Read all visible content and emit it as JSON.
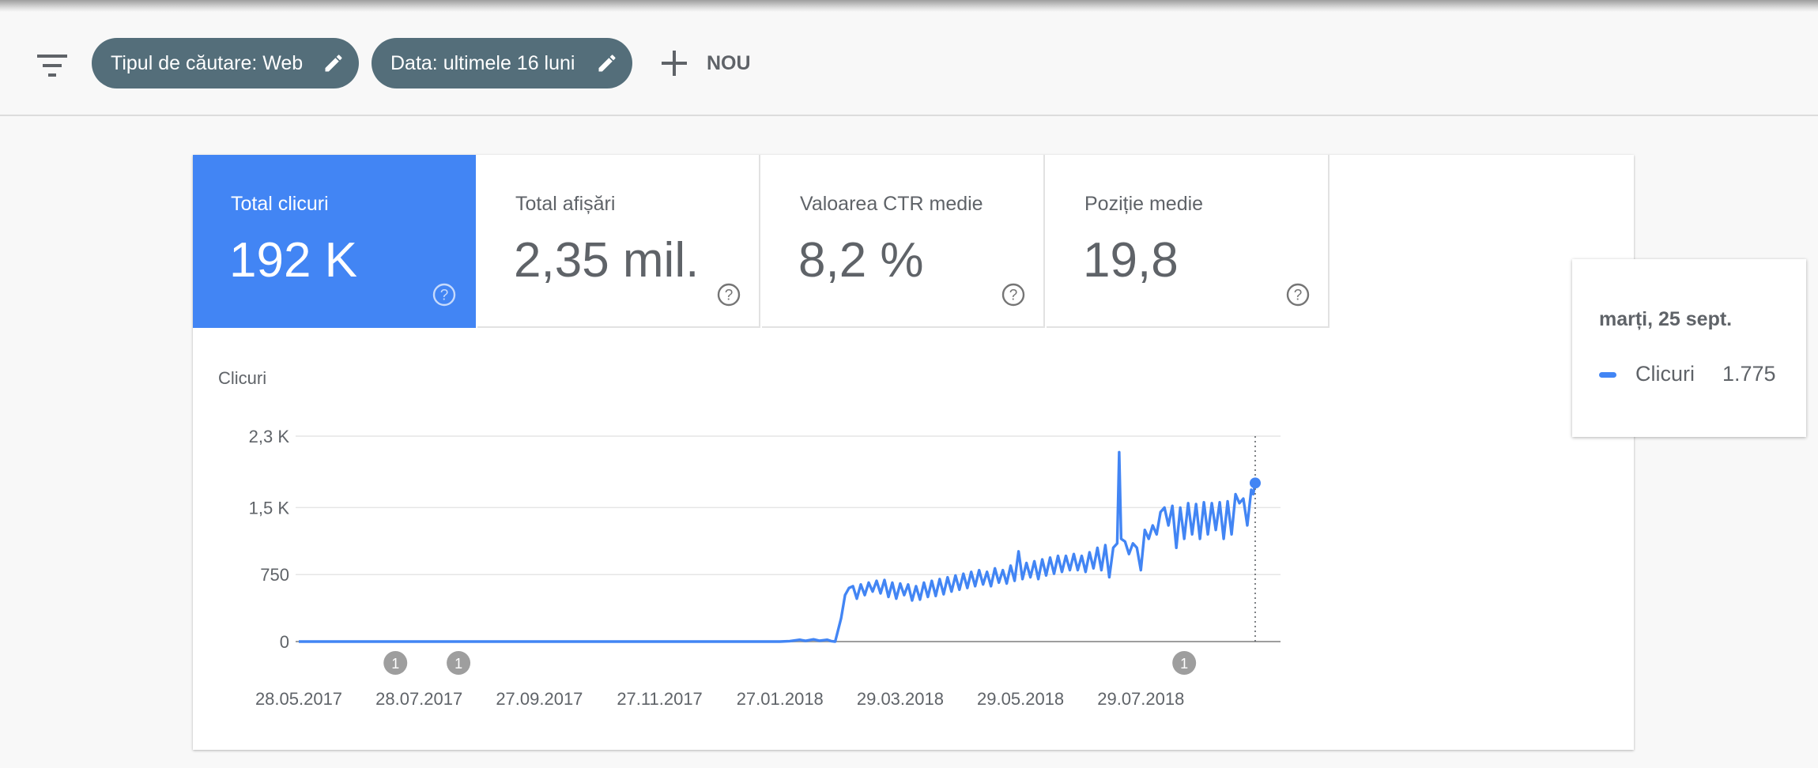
{
  "toolbar": {
    "filter_icon": "filter-list-icon",
    "chips": [
      {
        "label": "Tipul de căutare: Web",
        "icon": "pencil-icon"
      },
      {
        "label": "Data: ultimele 16 luni",
        "icon": "pencil-icon"
      }
    ],
    "new_label": "NOU",
    "new_icon": "plus-icon"
  },
  "metrics": [
    {
      "label": "Total clicuri",
      "value": "192 K",
      "active": true
    },
    {
      "label": "Total afișări",
      "value": "2,35 mil.",
      "active": false
    },
    {
      "label": "Valoarea CTR medie",
      "value": "8,2 %",
      "active": false
    },
    {
      "label": "Poziție medie",
      "value": "19,8",
      "active": false
    }
  ],
  "tooltip": {
    "date": "marți, 25 sept.",
    "series": "Clicuri",
    "value": "1.775"
  },
  "colors": {
    "accent": "#4285f4",
    "chip_bg": "#546e7a",
    "annotation": "#9e9e9e",
    "text": "#5f6368"
  },
  "chart_data": {
    "type": "line",
    "ylabel": "Clicuri",
    "ylim": [
      0,
      2300
    ],
    "yticks": [
      {
        "value": 0,
        "label": "0"
      },
      {
        "value": 750,
        "label": "750"
      },
      {
        "value": 1500,
        "label": "1,5 K"
      },
      {
        "value": 2300,
        "label": "2,3 K"
      }
    ],
    "xlim": [
      "2017-05-28",
      "2018-09-25"
    ],
    "xticks": [
      {
        "date": "2017-05-28",
        "label": "28.05.2017"
      },
      {
        "date": "2017-07-28",
        "label": "28.07.2017"
      },
      {
        "date": "2017-09-27",
        "label": "27.09.2017"
      },
      {
        "date": "2017-11-27",
        "label": "27.11.2017"
      },
      {
        "date": "2018-01-27",
        "label": "27.01.2018"
      },
      {
        "date": "2018-03-29",
        "label": "29.03.2018"
      },
      {
        "date": "2018-05-29",
        "label": "29.05.2018"
      },
      {
        "date": "2018-07-29",
        "label": "29.07.2018"
      }
    ],
    "annotations": [
      {
        "date": "2017-07-16",
        "label": "1"
      },
      {
        "date": "2017-08-17",
        "label": "1"
      },
      {
        "date": "2018-08-20",
        "label": "1"
      }
    ],
    "highlight": {
      "date": "2018-09-25",
      "value": 1775
    },
    "series": [
      {
        "name": "Clicuri",
        "points": [
          [
            "2017-05-28",
            0
          ],
          [
            "2018-01-27",
            0
          ],
          [
            "2018-02-01",
            5
          ],
          [
            "2018-02-06",
            20
          ],
          [
            "2018-02-09",
            8
          ],
          [
            "2018-02-13",
            25
          ],
          [
            "2018-02-16",
            10
          ],
          [
            "2018-02-20",
            20
          ],
          [
            "2018-02-22",
            5
          ],
          [
            "2018-02-24",
            0
          ],
          [
            "2018-02-27",
            260
          ],
          [
            "2018-03-01",
            520
          ],
          [
            "2018-03-03",
            600
          ],
          [
            "2018-03-05",
            620
          ],
          [
            "2018-03-07",
            480
          ],
          [
            "2018-03-09",
            640
          ],
          [
            "2018-03-11",
            520
          ],
          [
            "2018-03-13",
            660
          ],
          [
            "2018-03-15",
            560
          ],
          [
            "2018-03-17",
            680
          ],
          [
            "2018-03-19",
            540
          ],
          [
            "2018-03-21",
            690
          ],
          [
            "2018-03-23",
            500
          ],
          [
            "2018-03-25",
            660
          ],
          [
            "2018-03-27",
            480
          ],
          [
            "2018-03-29",
            650
          ],
          [
            "2018-03-31",
            520
          ],
          [
            "2018-04-02",
            640
          ],
          [
            "2018-04-04",
            460
          ],
          [
            "2018-04-06",
            620
          ],
          [
            "2018-04-08",
            470
          ],
          [
            "2018-04-10",
            660
          ],
          [
            "2018-04-12",
            500
          ],
          [
            "2018-04-14",
            680
          ],
          [
            "2018-04-16",
            510
          ],
          [
            "2018-04-18",
            700
          ],
          [
            "2018-04-20",
            530
          ],
          [
            "2018-04-22",
            720
          ],
          [
            "2018-04-24",
            560
          ],
          [
            "2018-04-26",
            740
          ],
          [
            "2018-04-28",
            580
          ],
          [
            "2018-04-30",
            760
          ],
          [
            "2018-05-02",
            600
          ],
          [
            "2018-05-04",
            780
          ],
          [
            "2018-05-06",
            620
          ],
          [
            "2018-05-08",
            800
          ],
          [
            "2018-05-10",
            640
          ],
          [
            "2018-05-12",
            780
          ],
          [
            "2018-05-14",
            620
          ],
          [
            "2018-05-16",
            820
          ],
          [
            "2018-05-18",
            660
          ],
          [
            "2018-05-20",
            800
          ],
          [
            "2018-05-22",
            650
          ],
          [
            "2018-05-24",
            850
          ],
          [
            "2018-05-26",
            680
          ],
          [
            "2018-05-28",
            1010
          ],
          [
            "2018-05-30",
            700
          ],
          [
            "2018-06-01",
            880
          ],
          [
            "2018-06-03",
            720
          ],
          [
            "2018-06-05",
            900
          ],
          [
            "2018-06-07",
            700
          ],
          [
            "2018-06-09",
            920
          ],
          [
            "2018-06-11",
            740
          ],
          [
            "2018-06-13",
            940
          ],
          [
            "2018-06-15",
            760
          ],
          [
            "2018-06-17",
            960
          ],
          [
            "2018-06-19",
            780
          ],
          [
            "2018-06-21",
            960
          ],
          [
            "2018-06-23",
            800
          ],
          [
            "2018-06-25",
            980
          ],
          [
            "2018-06-27",
            800
          ],
          [
            "2018-06-29",
            960
          ],
          [
            "2018-07-01",
            780
          ],
          [
            "2018-07-03",
            1000
          ],
          [
            "2018-07-05",
            820
          ],
          [
            "2018-07-07",
            1050
          ],
          [
            "2018-07-09",
            800
          ],
          [
            "2018-07-11",
            1080
          ],
          [
            "2018-07-13",
            720
          ],
          [
            "2018-07-15",
            1050
          ],
          [
            "2018-07-17",
            1100
          ],
          [
            "2018-07-18",
            2120
          ],
          [
            "2018-07-19",
            1150
          ],
          [
            "2018-07-21",
            1120
          ],
          [
            "2018-07-23",
            980
          ],
          [
            "2018-07-25",
            1100
          ],
          [
            "2018-07-27",
            1050
          ],
          [
            "2018-07-29",
            800
          ],
          [
            "2018-07-31",
            1250
          ],
          [
            "2018-08-02",
            1150
          ],
          [
            "2018-08-04",
            1300
          ],
          [
            "2018-08-06",
            1200
          ],
          [
            "2018-08-08",
            1450
          ],
          [
            "2018-08-10",
            1500
          ],
          [
            "2018-08-12",
            1300
          ],
          [
            "2018-08-14",
            1520
          ],
          [
            "2018-08-16",
            1050
          ],
          [
            "2018-08-18",
            1500
          ],
          [
            "2018-08-20",
            1150
          ],
          [
            "2018-08-22",
            1550
          ],
          [
            "2018-08-24",
            1200
          ],
          [
            "2018-08-26",
            1540
          ],
          [
            "2018-08-28",
            1150
          ],
          [
            "2018-08-30",
            1560
          ],
          [
            "2018-09-01",
            1200
          ],
          [
            "2018-09-03",
            1550
          ],
          [
            "2018-09-05",
            1250
          ],
          [
            "2018-09-07",
            1560
          ],
          [
            "2018-09-09",
            1150
          ],
          [
            "2018-09-11",
            1570
          ],
          [
            "2018-09-13",
            1200
          ],
          [
            "2018-09-15",
            1650
          ],
          [
            "2018-09-17",
            1550
          ],
          [
            "2018-09-19",
            1600
          ],
          [
            "2018-09-21",
            1300
          ],
          [
            "2018-09-23",
            1700
          ],
          [
            "2018-09-24",
            1650
          ],
          [
            "2018-09-25",
            1775
          ]
        ]
      }
    ]
  }
}
